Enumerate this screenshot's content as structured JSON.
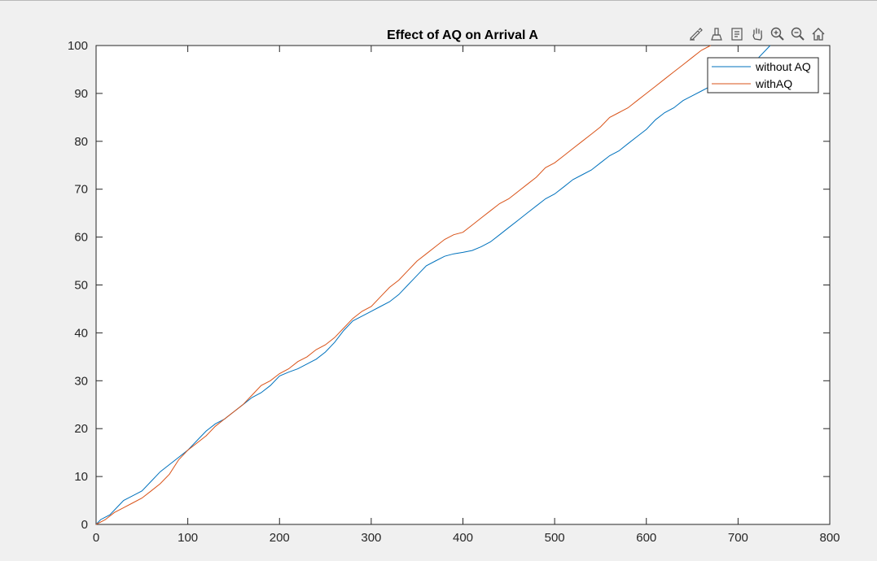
{
  "chart_data": {
    "type": "line",
    "title": "Effect of AQ on Arrival A",
    "xlabel": "",
    "ylabel": "",
    "xlim": [
      0,
      800
    ],
    "ylim": [
      0,
      100
    ],
    "xticks": [
      0,
      100,
      200,
      300,
      400,
      500,
      600,
      700,
      800
    ],
    "yticks": [
      0,
      10,
      20,
      30,
      40,
      50,
      60,
      70,
      80,
      90,
      100
    ],
    "grid": false,
    "legend_position": "top-right",
    "series": [
      {
        "name": "without AQ",
        "color": "#0072BD",
        "points": [
          [
            0,
            0
          ],
          [
            5,
            1
          ],
          [
            15,
            2
          ],
          [
            25,
            4
          ],
          [
            30,
            5
          ],
          [
            40,
            6
          ],
          [
            50,
            7
          ],
          [
            60,
            9
          ],
          [
            70,
            11
          ],
          [
            80,
            12.5
          ],
          [
            90,
            14
          ],
          [
            100,
            15.5
          ],
          [
            110,
            17.5
          ],
          [
            120,
            19.5
          ],
          [
            130,
            21
          ],
          [
            140,
            22
          ],
          [
            150,
            23.5
          ],
          [
            160,
            25
          ],
          [
            170,
            26.5
          ],
          [
            180,
            27.5
          ],
          [
            190,
            29
          ],
          [
            200,
            31
          ],
          [
            210,
            31.8
          ],
          [
            220,
            32.5
          ],
          [
            230,
            33.5
          ],
          [
            240,
            34.5
          ],
          [
            250,
            36
          ],
          [
            260,
            38
          ],
          [
            270,
            40.5
          ],
          [
            280,
            42.5
          ],
          [
            290,
            43.5
          ],
          [
            300,
            44.5
          ],
          [
            310,
            45.5
          ],
          [
            320,
            46.5
          ],
          [
            330,
            48
          ],
          [
            340,
            50
          ],
          [
            350,
            52
          ],
          [
            360,
            54
          ],
          [
            370,
            55
          ],
          [
            380,
            56
          ],
          [
            390,
            56.5
          ],
          [
            400,
            56.8
          ],
          [
            410,
            57.2
          ],
          [
            420,
            58
          ],
          [
            430,
            59
          ],
          [
            440,
            60.5
          ],
          [
            450,
            62
          ],
          [
            460,
            63.5
          ],
          [
            470,
            65
          ],
          [
            480,
            66.5
          ],
          [
            490,
            68
          ],
          [
            500,
            69
          ],
          [
            510,
            70.5
          ],
          [
            520,
            72
          ],
          [
            530,
            73
          ],
          [
            540,
            74
          ],
          [
            550,
            75.5
          ],
          [
            560,
            77
          ],
          [
            570,
            78
          ],
          [
            580,
            79.5
          ],
          [
            590,
            81
          ],
          [
            600,
            82.5
          ],
          [
            610,
            84.5
          ],
          [
            620,
            86
          ],
          [
            630,
            87
          ],
          [
            640,
            88.5
          ],
          [
            650,
            89.5
          ],
          [
            660,
            90.5
          ],
          [
            670,
            91.5
          ],
          [
            680,
            92
          ],
          [
            690,
            93
          ],
          [
            700,
            94
          ],
          [
            710,
            95
          ],
          [
            720,
            97
          ],
          [
            730,
            99
          ],
          [
            735,
            100
          ]
        ]
      },
      {
        "name": "withAQ",
        "color": "#D95319",
        "points": [
          [
            0,
            0
          ],
          [
            10,
            1
          ],
          [
            20,
            2.5
          ],
          [
            30,
            3.5
          ],
          [
            40,
            4.5
          ],
          [
            50,
            5.5
          ],
          [
            60,
            7
          ],
          [
            70,
            8.5
          ],
          [
            80,
            10.5
          ],
          [
            90,
            13.5
          ],
          [
            100,
            15.5
          ],
          [
            110,
            17
          ],
          [
            120,
            18.5
          ],
          [
            130,
            20.5
          ],
          [
            140,
            22
          ],
          [
            150,
            23.5
          ],
          [
            160,
            25
          ],
          [
            170,
            27
          ],
          [
            180,
            29
          ],
          [
            190,
            30
          ],
          [
            200,
            31.5
          ],
          [
            210,
            32.5
          ],
          [
            220,
            34
          ],
          [
            230,
            35
          ],
          [
            240,
            36.5
          ],
          [
            250,
            37.5
          ],
          [
            260,
            39
          ],
          [
            270,
            41
          ],
          [
            280,
            43
          ],
          [
            290,
            44.5
          ],
          [
            300,
            45.5
          ],
          [
            310,
            47.5
          ],
          [
            320,
            49.5
          ],
          [
            330,
            51
          ],
          [
            340,
            53
          ],
          [
            350,
            55
          ],
          [
            360,
            56.5
          ],
          [
            370,
            58
          ],
          [
            380,
            59.5
          ],
          [
            390,
            60.5
          ],
          [
            400,
            61
          ],
          [
            410,
            62.5
          ],
          [
            420,
            64
          ],
          [
            430,
            65.5
          ],
          [
            440,
            67
          ],
          [
            450,
            68
          ],
          [
            460,
            69.5
          ],
          [
            470,
            71
          ],
          [
            480,
            72.5
          ],
          [
            490,
            74.5
          ],
          [
            500,
            75.5
          ],
          [
            510,
            77
          ],
          [
            520,
            78.5
          ],
          [
            530,
            80
          ],
          [
            540,
            81.5
          ],
          [
            550,
            83
          ],
          [
            560,
            85
          ],
          [
            570,
            86
          ],
          [
            580,
            87
          ],
          [
            590,
            88.5
          ],
          [
            600,
            90
          ],
          [
            610,
            91.5
          ],
          [
            620,
            93
          ],
          [
            630,
            94.5
          ],
          [
            640,
            96
          ],
          [
            650,
            97.5
          ],
          [
            660,
            99
          ],
          [
            670,
            100
          ]
        ]
      }
    ]
  },
  "toolbar": {
    "icons": [
      "brush-edit-icon",
      "data-tips-icon",
      "rotate-doc-icon",
      "pan-hand-icon",
      "zoom-in-icon",
      "zoom-out-icon",
      "home-icon"
    ]
  }
}
